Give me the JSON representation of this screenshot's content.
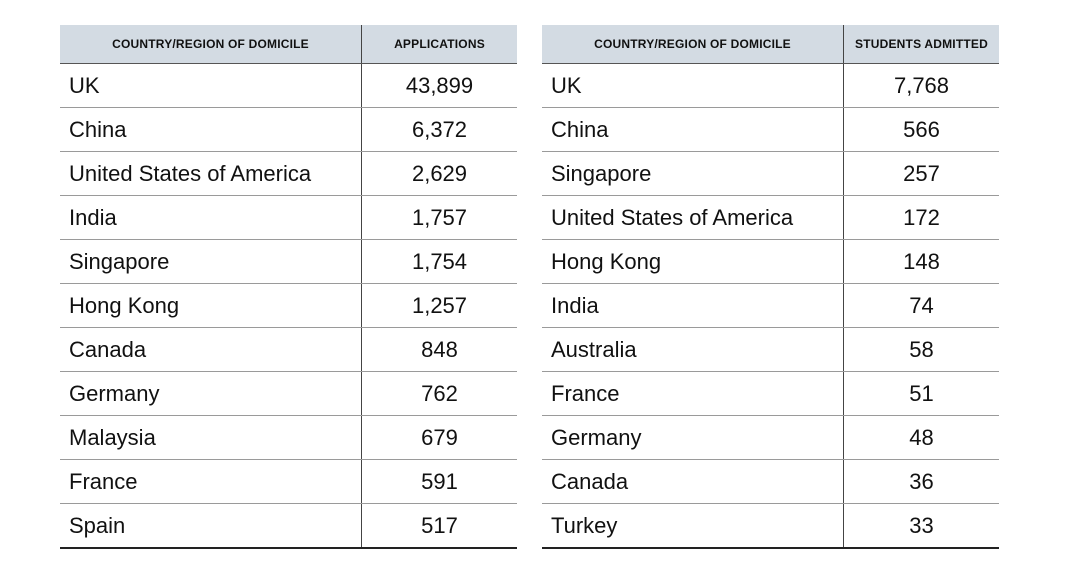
{
  "applications_table": {
    "headers": [
      "COUNTRY/REGION OF DOMICILE",
      "APPLICATIONS"
    ],
    "rows": [
      [
        "UK",
        "43,899"
      ],
      [
        "China",
        "6,372"
      ],
      [
        "United States of America",
        "2,629"
      ],
      [
        "India",
        "1,757"
      ],
      [
        "Singapore",
        "1,754"
      ],
      [
        "Hong Kong",
        "1,257"
      ],
      [
        "Canada",
        "848"
      ],
      [
        "Germany",
        "762"
      ],
      [
        "Malaysia",
        "679"
      ],
      [
        "France",
        "591"
      ],
      [
        "Spain",
        "517"
      ]
    ]
  },
  "admitted_table": {
    "headers": [
      "COUNTRY/REGION OF DOMICILE",
      "STUDENTS ADMITTED"
    ],
    "rows": [
      [
        "UK",
        "7,768"
      ],
      [
        "China",
        "566"
      ],
      [
        "Singapore",
        "257"
      ],
      [
        "United States of America",
        "172"
      ],
      [
        "Hong Kong",
        "148"
      ],
      [
        "India",
        "74"
      ],
      [
        "Australia",
        "58"
      ],
      [
        "France",
        "51"
      ],
      [
        "Germany",
        "48"
      ],
      [
        "Canada",
        "36"
      ],
      [
        "Turkey",
        "33"
      ]
    ]
  }
}
